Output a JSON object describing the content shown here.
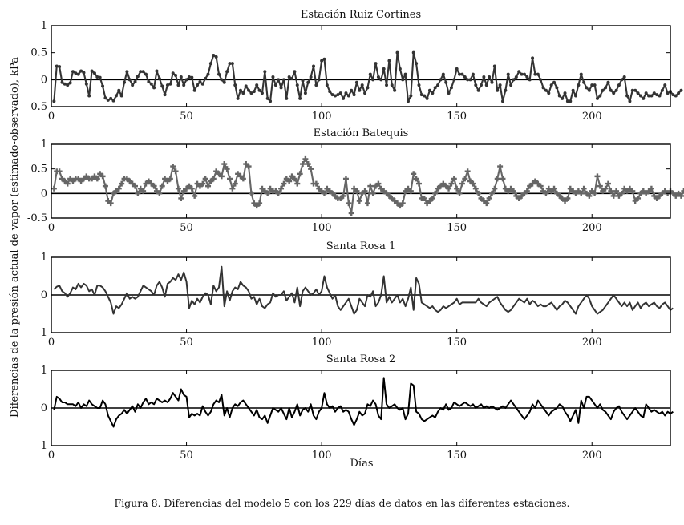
{
  "figure": {
    "ylabel": "Diferencias de la presión actual de vapor (estimado-observado), kPa",
    "xlabel": "Días",
    "caption": "Figura 8. Diferencias del modelo 5 con los 229 días de datos en las diferentes estaciones."
  },
  "chart_data": [
    {
      "type": "line",
      "title": "Estación Ruiz Cortines",
      "marker": "dot",
      "color": "#333333",
      "xlim": [
        0,
        229
      ],
      "ylim": [
        -0.5,
        1
      ],
      "xticks": [
        0,
        50,
        100,
        150,
        200
      ],
      "yticks": [
        -0.5,
        0,
        0.5,
        1
      ],
      "ytick_labels": [
        "-0.5",
        "0",
        "0.5",
        "1"
      ],
      "x_start": 1,
      "values": [
        -0.4,
        0.25,
        0.24,
        -0.05,
        -0.08,
        -0.1,
        -0.06,
        0.15,
        0.12,
        0.1,
        0.16,
        0.13,
        -0.08,
        -0.3,
        0.16,
        0.12,
        0.05,
        0.04,
        -0.12,
        -0.34,
        -0.38,
        -0.35,
        -0.39,
        -0.3,
        -0.2,
        -0.3,
        -0.05,
        0.15,
        0.0,
        -0.1,
        -0.04,
        0.06,
        0.15,
        0.15,
        0.1,
        -0.04,
        -0.08,
        -0.15,
        0.16,
        0.02,
        -0.12,
        -0.28,
        -0.1,
        -0.08,
        0.12,
        0.08,
        -0.1,
        0.05,
        -0.1,
        0.0,
        0.05,
        0.04,
        -0.2,
        -0.1,
        -0.04,
        -0.08,
        0.02,
        0.1,
        0.3,
        0.45,
        0.42,
        0.1,
        0.0,
        -0.05,
        0.15,
        0.3,
        0.3,
        -0.1,
        -0.35,
        -0.2,
        -0.25,
        -0.12,
        -0.2,
        -0.25,
        -0.22,
        -0.1,
        -0.2,
        -0.25,
        0.15,
        -0.35,
        -0.4,
        0.05,
        -0.1,
        0.0,
        -0.15,
        0.0,
        -0.35,
        0.05,
        0.02,
        0.15,
        -0.1,
        -0.35,
        -0.02,
        -0.25,
        -0.05,
        0.05,
        0.25,
        -0.1,
        0.0,
        0.35,
        0.38,
        -0.1,
        -0.22,
        -0.28,
        -0.3,
        -0.28,
        -0.25,
        -0.35,
        -0.25,
        -0.3,
        -0.2,
        -0.28,
        -0.05,
        -0.2,
        -0.1,
        -0.25,
        -0.15,
        0.1,
        0.0,
        0.3,
        0.05,
        0.0,
        0.2,
        -0.1,
        0.35,
        -0.1,
        -0.2,
        0.5,
        0.2,
        0.0,
        0.1,
        -0.4,
        -0.3,
        0.5,
        0.3,
        -0.1,
        -0.28,
        -0.3,
        -0.35,
        -0.2,
        -0.25,
        -0.15,
        -0.1,
        0.0,
        0.1,
        -0.05,
        -0.25,
        -0.15,
        0.0,
        0.2,
        0.1,
        0.1,
        0.05,
        0.0,
        0.0,
        0.1,
        -0.1,
        -0.2,
        -0.1,
        0.05,
        -0.1,
        0.05,
        -0.05,
        0.25,
        -0.2,
        -0.1,
        -0.4,
        -0.2,
        0.1,
        -0.1,
        0.0,
        0.05,
        0.15,
        0.1,
        0.1,
        0.05,
        0.0,
        0.4,
        0.1,
        0.1,
        0.0,
        -0.15,
        -0.2,
        -0.25,
        -0.1,
        -0.05,
        -0.15,
        -0.3,
        -0.35,
        -0.25,
        -0.4,
        -0.4,
        -0.2,
        -0.3,
        -0.1,
        0.1,
        -0.05,
        -0.15,
        -0.2,
        -0.1,
        -0.1,
        -0.35,
        -0.3,
        -0.2,
        -0.15,
        -0.05,
        -0.2,
        -0.25,
        -0.2,
        -0.1,
        0.0,
        0.05,
        -0.3,
        -0.4,
        -0.2,
        -0.2,
        -0.25,
        -0.3,
        -0.35,
        -0.25,
        -0.3,
        -0.3,
        -0.25,
        -0.28,
        -0.3,
        -0.2,
        -0.1,
        -0.25,
        -0.22,
        -0.28,
        -0.3,
        -0.25,
        -0.2
      ]
    },
    {
      "type": "line",
      "title": "Estación Batequis",
      "marker": "plus",
      "color": "#666666",
      "xlim": [
        0,
        229
      ],
      "ylim": [
        -0.5,
        1
      ],
      "xticks": [
        0,
        50,
        100,
        150,
        200
      ],
      "yticks": [
        -0.5,
        0,
        0.5,
        1
      ],
      "ytick_labels": [
        "-0.5",
        "0",
        "0.5",
        "1"
      ],
      "x_start": 1,
      "values": [
        0.1,
        0.45,
        0.45,
        0.3,
        0.25,
        0.2,
        0.3,
        0.25,
        0.3,
        0.3,
        0.25,
        0.3,
        0.35,
        0.3,
        0.3,
        0.35,
        0.3,
        0.4,
        0.35,
        0.15,
        -0.15,
        -0.2,
        0.0,
        0.05,
        0.1,
        0.2,
        0.3,
        0.3,
        0.25,
        0.2,
        0.15,
        0.0,
        0.1,
        0.05,
        0.2,
        0.25,
        0.2,
        0.15,
        0.05,
        0.0,
        0.15,
        0.3,
        0.25,
        0.3,
        0.55,
        0.45,
        0.1,
        -0.1,
        0.05,
        0.1,
        0.15,
        0.1,
        -0.05,
        0.2,
        0.15,
        0.2,
        0.3,
        0.15,
        0.25,
        0.3,
        0.45,
        0.4,
        0.35,
        0.6,
        0.5,
        0.3,
        0.1,
        0.2,
        0.4,
        0.35,
        0.3,
        0.6,
        0.55,
        0.0,
        -0.2,
        -0.25,
        -0.2,
        0.1,
        0.05,
        0.0,
        0.1,
        0.05,
        0.05,
        0.0,
        0.1,
        0.2,
        0.3,
        0.25,
        0.35,
        0.3,
        0.2,
        0.4,
        0.6,
        0.7,
        0.6,
        0.5,
        0.2,
        0.2,
        0.1,
        0.05,
        0.0,
        0.1,
        0.05,
        0.0,
        -0.05,
        -0.1,
        -0.1,
        -0.05,
        0.3,
        -0.2,
        -0.4,
        0.1,
        0.05,
        -0.15,
        0.0,
        0.05,
        -0.2,
        0.15,
        0.0,
        0.15,
        0.2,
        0.1,
        0.05,
        0.0,
        -0.05,
        -0.1,
        -0.15,
        -0.2,
        -0.25,
        -0.2,
        0.05,
        0.1,
        0.05,
        0.4,
        0.3,
        0.2,
        -0.1,
        -0.1,
        -0.2,
        -0.15,
        -0.1,
        0.0,
        0.1,
        0.15,
        0.2,
        0.15,
        0.1,
        0.2,
        0.3,
        0.1,
        0.0,
        0.2,
        0.3,
        0.45,
        0.25,
        0.2,
        0.1,
        0.0,
        -0.1,
        -0.15,
        -0.2,
        -0.1,
        0.0,
        0.1,
        0.3,
        0.55,
        0.3,
        0.1,
        0.05,
        0.1,
        0.05,
        -0.05,
        -0.1,
        -0.05,
        0.0,
        0.05,
        0.15,
        0.2,
        0.25,
        0.2,
        0.15,
        0.05,
        0.0,
        0.1,
        0.05,
        0.1,
        0.0,
        -0.05,
        -0.1,
        -0.15,
        -0.1,
        0.1,
        0.05,
        0.0,
        0.05,
        0.0,
        0.1,
        0.0,
        -0.05,
        0.05,
        0.0,
        0.35,
        0.15,
        0.05,
        0.1,
        0.2,
        0.05,
        -0.05,
        0.05,
        -0.05,
        0.0,
        0.1,
        0.05,
        0.1,
        0.05,
        -0.15,
        -0.1,
        0.0,
        0.05,
        0.0,
        0.05,
        0.1,
        -0.05,
        -0.1,
        -0.05,
        0.0,
        0.05,
        0.0,
        0.05,
        0.0,
        -0.05,
        0.0,
        -0.05,
        0.05,
        0.0,
        0.05,
        -0.05,
        0.0,
        0.05
      ]
    },
    {
      "type": "line",
      "title": "Santa Rosa 1",
      "marker": "none",
      "color": "#333333",
      "xlim": [
        0,
        229
      ],
      "ylim": [
        -1,
        1
      ],
      "xticks": [
        0,
        50,
        100,
        150,
        200
      ],
      "yticks": [
        -1,
        0,
        1
      ],
      "ytick_labels": [
        "-1",
        "0",
        "1"
      ],
      "x_start": 1,
      "values": [
        0.15,
        0.22,
        0.25,
        0.1,
        0.05,
        -0.05,
        0.05,
        0.2,
        0.15,
        0.3,
        0.2,
        0.3,
        0.25,
        0.1,
        0.15,
        0.0,
        0.25,
        0.25,
        0.2,
        0.1,
        -0.05,
        -0.2,
        -0.5,
        -0.3,
        -0.35,
        -0.25,
        -0.1,
        0.05,
        -0.1,
        -0.05,
        -0.1,
        -0.05,
        0.1,
        0.25,
        0.2,
        0.15,
        0.1,
        0.0,
        0.25,
        0.35,
        0.2,
        -0.05,
        0.3,
        0.35,
        0.45,
        0.4,
        0.55,
        0.4,
        0.6,
        0.35,
        -0.35,
        -0.15,
        -0.25,
        -0.1,
        -0.2,
        -0.05,
        0.05,
        0.0,
        -0.25,
        0.25,
        0.1,
        0.2,
        0.75,
        -0.3,
        0.1,
        -0.15,
        0.1,
        0.2,
        0.15,
        0.35,
        0.25,
        0.2,
        0.1,
        -0.1,
        -0.05,
        -0.25,
        -0.1,
        -0.3,
        -0.35,
        -0.25,
        -0.2,
        0.05,
        -0.05,
        0.0,
        0.0,
        0.1,
        -0.15,
        -0.05,
        0.05,
        -0.2,
        0.2,
        -0.3,
        0.1,
        0.2,
        0.1,
        0.0,
        0.05,
        0.15,
        0.0,
        0.1,
        0.5,
        0.2,
        0.05,
        -0.1,
        0.0,
        -0.3,
        -0.4,
        -0.3,
        -0.2,
        -0.1,
        -0.3,
        -0.5,
        -0.4,
        -0.1,
        -0.2,
        -0.3,
        0.0,
        -0.05,
        0.1,
        -0.3,
        -0.2,
        0.0,
        0.5,
        -0.2,
        -0.05,
        -0.2,
        -0.1,
        0.0,
        -0.2,
        -0.1,
        -0.3,
        -0.1,
        0.2,
        -0.4,
        0.45,
        0.3,
        -0.2,
        -0.25,
        -0.3,
        -0.35,
        -0.3,
        -0.4,
        -0.45,
        -0.4,
        -0.3,
        -0.35,
        -0.3,
        -0.25,
        -0.2,
        -0.1,
        -0.25,
        -0.2,
        -0.2,
        -0.2,
        -0.2,
        -0.2,
        -0.2,
        -0.1,
        -0.2,
        -0.25,
        -0.3,
        -0.2,
        -0.15,
        -0.1,
        -0.05,
        -0.2,
        -0.3,
        -0.4,
        -0.45,
        -0.4,
        -0.3,
        -0.2,
        -0.1,
        -0.15,
        -0.2,
        -0.1,
        -0.25,
        -0.15,
        -0.2,
        -0.3,
        -0.25,
        -0.3,
        -0.3,
        -0.25,
        -0.2,
        -0.3,
        -0.4,
        -0.3,
        -0.25,
        -0.15,
        -0.2,
        -0.3,
        -0.4,
        -0.5,
        -0.3,
        -0.2,
        -0.1,
        0.0,
        -0.1,
        -0.3,
        -0.4,
        -0.5,
        -0.45,
        -0.4,
        -0.3,
        -0.2,
        -0.1,
        0.0,
        -0.1,
        -0.2,
        -0.3,
        -0.2,
        -0.3,
        -0.2,
        -0.4,
        -0.3,
        -0.2,
        -0.35,
        -0.25,
        -0.2,
        -0.3,
        -0.25,
        -0.2,
        -0.3,
        -0.35,
        -0.25,
        -0.2,
        -0.3,
        -0.4,
        -0.35
      ]
    },
    {
      "type": "line",
      "title": "Santa Rosa 2",
      "marker": "none",
      "color": "#000000",
      "xlim": [
        0,
        229
      ],
      "ylim": [
        -1,
        1
      ],
      "xticks": [
        0,
        50,
        100,
        150,
        200
      ],
      "yticks": [
        -1,
        0,
        1
      ],
      "ytick_labels": [
        "-1",
        "0",
        "1"
      ],
      "x_start": 1,
      "values": [
        -0.05,
        0.3,
        0.25,
        0.15,
        0.15,
        0.1,
        0.1,
        0.1,
        0.05,
        0.15,
        0.0,
        0.1,
        0.05,
        0.2,
        0.1,
        0.05,
        0.0,
        0.0,
        0.2,
        0.1,
        -0.2,
        -0.35,
        -0.5,
        -0.3,
        -0.2,
        -0.15,
        -0.05,
        -0.15,
        -0.05,
        0.05,
        -0.1,
        0.1,
        0.0,
        0.15,
        0.25,
        0.1,
        0.15,
        0.1,
        0.25,
        0.2,
        0.15,
        0.2,
        0.15,
        0.25,
        0.4,
        0.3,
        0.2,
        0.5,
        0.35,
        0.3,
        -0.25,
        -0.15,
        -0.2,
        -0.15,
        -0.2,
        0.05,
        -0.1,
        -0.2,
        -0.1,
        0.1,
        0.2,
        0.15,
        0.35,
        -0.2,
        0.0,
        -0.25,
        0.0,
        0.1,
        0.05,
        0.15,
        0.2,
        0.1,
        0.0,
        -0.1,
        -0.2,
        -0.05,
        -0.25,
        -0.3,
        -0.2,
        -0.4,
        -0.2,
        0.0,
        -0.05,
        -0.1,
        0.0,
        -0.15,
        -0.3,
        0.0,
        -0.25,
        -0.1,
        0.1,
        -0.2,
        -0.05,
        0.0,
        -0.1,
        0.1,
        -0.2,
        -0.3,
        -0.1,
        0.0,
        0.4,
        0.1,
        0.0,
        0.05,
        -0.1,
        0.0,
        0.05,
        -0.1,
        -0.05,
        -0.1,
        -0.3,
        -0.45,
        -0.3,
        -0.1,
        -0.2,
        -0.15,
        0.1,
        0.05,
        0.2,
        0.1,
        -0.2,
        -0.3,
        0.8,
        0.1,
        0.0,
        0.05,
        0.1,
        0.0,
        -0.05,
        0.0,
        -0.3,
        -0.15,
        0.65,
        0.6,
        -0.1,
        -0.15,
        -0.3,
        -0.35,
        -0.3,
        -0.25,
        -0.2,
        -0.25,
        -0.1,
        0.0,
        -0.05,
        0.1,
        -0.05,
        0.0,
        0.15,
        0.1,
        0.05,
        0.1,
        0.15,
        0.1,
        0.05,
        0.1,
        0.0,
        0.05,
        0.1,
        0.0,
        0.05,
        0.0,
        0.05,
        0.0,
        -0.05,
        0.0,
        0.05,
        0.0,
        0.1,
        0.2,
        0.1,
        0.0,
        -0.1,
        -0.2,
        -0.3,
        -0.2,
        -0.1,
        0.1,
        0.0,
        0.2,
        0.1,
        0.0,
        -0.1,
        -0.2,
        -0.1,
        -0.05,
        0.0,
        0.1,
        0.05,
        -0.1,
        -0.2,
        -0.35,
        -0.2,
        -0.05,
        -0.4,
        0.2,
        0.0,
        0.3,
        0.3,
        0.2,
        0.1,
        0.0,
        0.1,
        -0.05,
        -0.1,
        -0.2,
        -0.3,
        -0.1,
        0.0,
        0.05,
        -0.1,
        -0.2,
        -0.3,
        -0.2,
        -0.1,
        0.0,
        -0.1,
        -0.2,
        -0.25,
        0.1,
        0.0,
        -0.1,
        -0.05,
        -0.1,
        -0.15,
        -0.1,
        -0.2,
        -0.1,
        -0.15,
        -0.1
      ]
    }
  ]
}
